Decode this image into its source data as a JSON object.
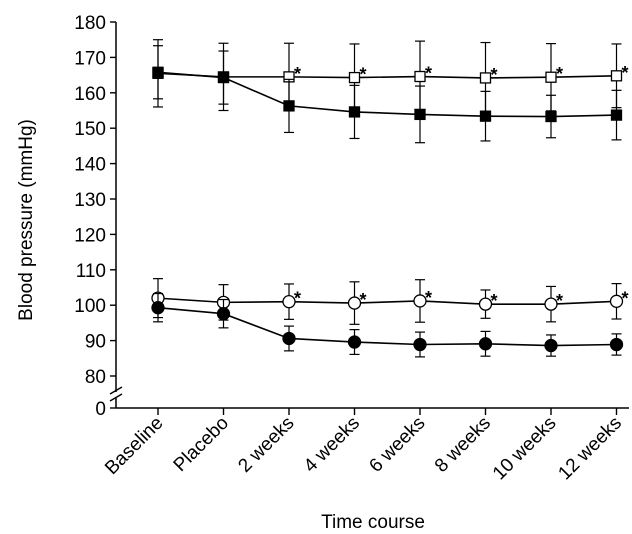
{
  "chart_data": {
    "type": "line",
    "xlabel": "Time course",
    "ylabel": "Blood pressure (mmHg)",
    "categories": [
      "Baseline",
      "Placebo",
      "2 weeks",
      "4 weeks",
      "6 weeks",
      "8 weeks",
      "10 weeks",
      "12 weeks"
    ],
    "y_ticks": [
      0,
      80,
      90,
      100,
      110,
      120,
      130,
      140,
      150,
      160,
      170,
      180
    ],
    "ylim": [
      75,
      180
    ],
    "y_axis_break": true,
    "grid": false,
    "annotation_symbol": "*",
    "series": [
      {
        "marker": "open-square",
        "values": [
          165.5,
          164.5,
          164.5,
          164.3,
          164.6,
          164.2,
          164.4,
          164.8
        ],
        "errors": [
          9.5,
          9.5,
          9.5,
          9.5,
          10,
          10,
          9.5,
          9
        ],
        "significant": [
          false,
          false,
          true,
          true,
          true,
          true,
          true,
          true
        ]
      },
      {
        "marker": "filled-square",
        "values": [
          165.8,
          164.3,
          156.3,
          154.6,
          153.9,
          153.4,
          153.3,
          153.7
        ],
        "errors": [
          7.5,
          7.5,
          7.5,
          7.5,
          8,
          7,
          6,
          7
        ],
        "significant": [
          false,
          false,
          false,
          false,
          false,
          false,
          false,
          false
        ]
      },
      {
        "marker": "open-circle",
        "values": [
          102.0,
          100.8,
          101.0,
          100.6,
          101.2,
          100.3,
          100.3,
          101.1
        ],
        "errors": [
          5.5,
          5.0,
          5.0,
          6.0,
          6.0,
          4.0,
          5.0,
          5.0
        ],
        "significant": [
          false,
          false,
          true,
          true,
          true,
          true,
          true,
          true
        ]
      },
      {
        "marker": "filled-circle",
        "values": [
          99.3,
          97.6,
          90.6,
          89.6,
          88.9,
          89.1,
          88.6,
          88.9
        ],
        "errors": [
          4.0,
          4.0,
          3.5,
          3.5,
          3.5,
          3.5,
          3.0,
          3.0
        ],
        "significant": [
          false,
          false,
          false,
          false,
          false,
          false,
          false,
          false
        ]
      }
    ]
  }
}
